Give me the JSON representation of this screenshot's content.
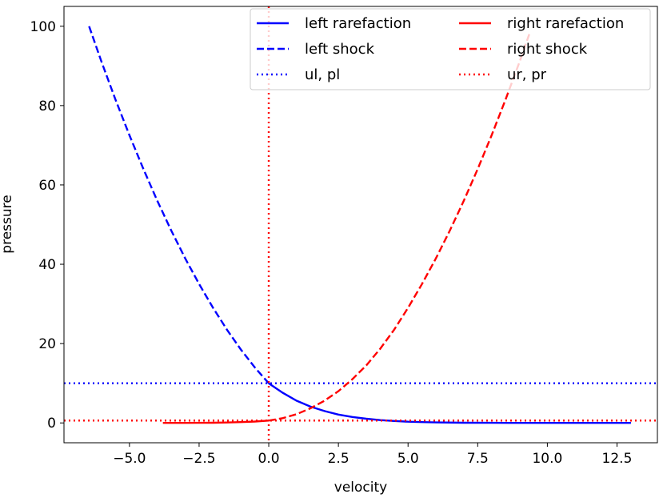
{
  "chart_data": {
    "type": "line",
    "title": "",
    "xlabel": "velocity",
    "ylabel": "pressure",
    "xlim": [
      -7.35,
      13.95
    ],
    "ylim": [
      -5,
      105
    ],
    "xticks": [
      -5.0,
      -2.5,
      0.0,
      2.5,
      5.0,
      7.5,
      10.0,
      12.5
    ],
    "xtick_labels": [
      "−5.0",
      "−2.5",
      "0.0",
      "2.5",
      "5.0",
      "7.5",
      "10.0",
      "12.5"
    ],
    "yticks": [
      0,
      20,
      40,
      60,
      80,
      100
    ],
    "ytick_labels": [
      "0",
      "20",
      "40",
      "60",
      "80",
      "100"
    ],
    "grid": false,
    "legend": {
      "position": "top-right",
      "columns": 2
    },
    "series": [
      {
        "name": "left rarefaction",
        "color": "#0000ff",
        "linestyle": "solid",
        "x": [
          0.0,
          0.5,
          1.0,
          1.5,
          2.0,
          2.5,
          3.0,
          3.5,
          4.0,
          4.5,
          5.0,
          5.5,
          6.0,
          7.0,
          8.0,
          9.0,
          10.0,
          11.0,
          12.0,
          13.0
        ],
        "y": [
          10.0,
          7.6,
          5.6,
          4.1,
          3.0,
          2.1,
          1.5,
          1.05,
          0.72,
          0.48,
          0.31,
          0.2,
          0.13,
          0.05,
          0.018,
          0.006,
          0.002,
          0.0005,
          0.0001,
          0.0
        ]
      },
      {
        "name": "left shock",
        "color": "#0000ff",
        "linestyle": "dashed",
        "x": [
          -6.45,
          -6.0,
          -5.5,
          -5.0,
          -4.5,
          -4.0,
          -3.5,
          -3.0,
          -2.5,
          -2.0,
          -1.5,
          -1.0,
          -0.5,
          0.0
        ],
        "y": [
          100.0,
          91.0,
          81.5,
          72.5,
          64.0,
          56.0,
          48.5,
          41.5,
          35.0,
          29.0,
          23.5,
          18.5,
          14.0,
          10.0
        ]
      },
      {
        "name": "ul, pl",
        "color": "#0000ff",
        "linestyle": "dotted",
        "orientation": "horizontal",
        "value": 10.0
      },
      {
        "name": "right rarefaction",
        "color": "#ff0000",
        "linestyle": "solid",
        "x": [
          -3.8,
          -3.0,
          -2.5,
          -2.0,
          -1.5,
          -1.0,
          -0.5,
          0.0
        ],
        "y": [
          0.0,
          0.0,
          0.02,
          0.05,
          0.1,
          0.2,
          0.35,
          0.6
        ]
      },
      {
        "name": "right shock",
        "color": "#ff0000",
        "linestyle": "dashed",
        "x": [
          0.0,
          0.5,
          1.0,
          1.5,
          2.0,
          2.5,
          3.0,
          3.5,
          4.0,
          4.5,
          5.0,
          5.5,
          6.0,
          6.5,
          7.0,
          7.5,
          8.0,
          8.5,
          9.0,
          9.35
        ],
        "y": [
          0.6,
          1.2,
          2.2,
          3.7,
          5.6,
          8.0,
          11.0,
          14.5,
          18.7,
          23.5,
          29.0,
          35.0,
          41.5,
          48.5,
          56.0,
          64.0,
          72.5,
          81.5,
          91.0,
          98.0
        ]
      },
      {
        "name": "ur, pr",
        "color": "#ff0000",
        "linestyle": "dotted",
        "orientation": "both",
        "value_x": 0.0,
        "value_y": 0.6
      }
    ]
  }
}
